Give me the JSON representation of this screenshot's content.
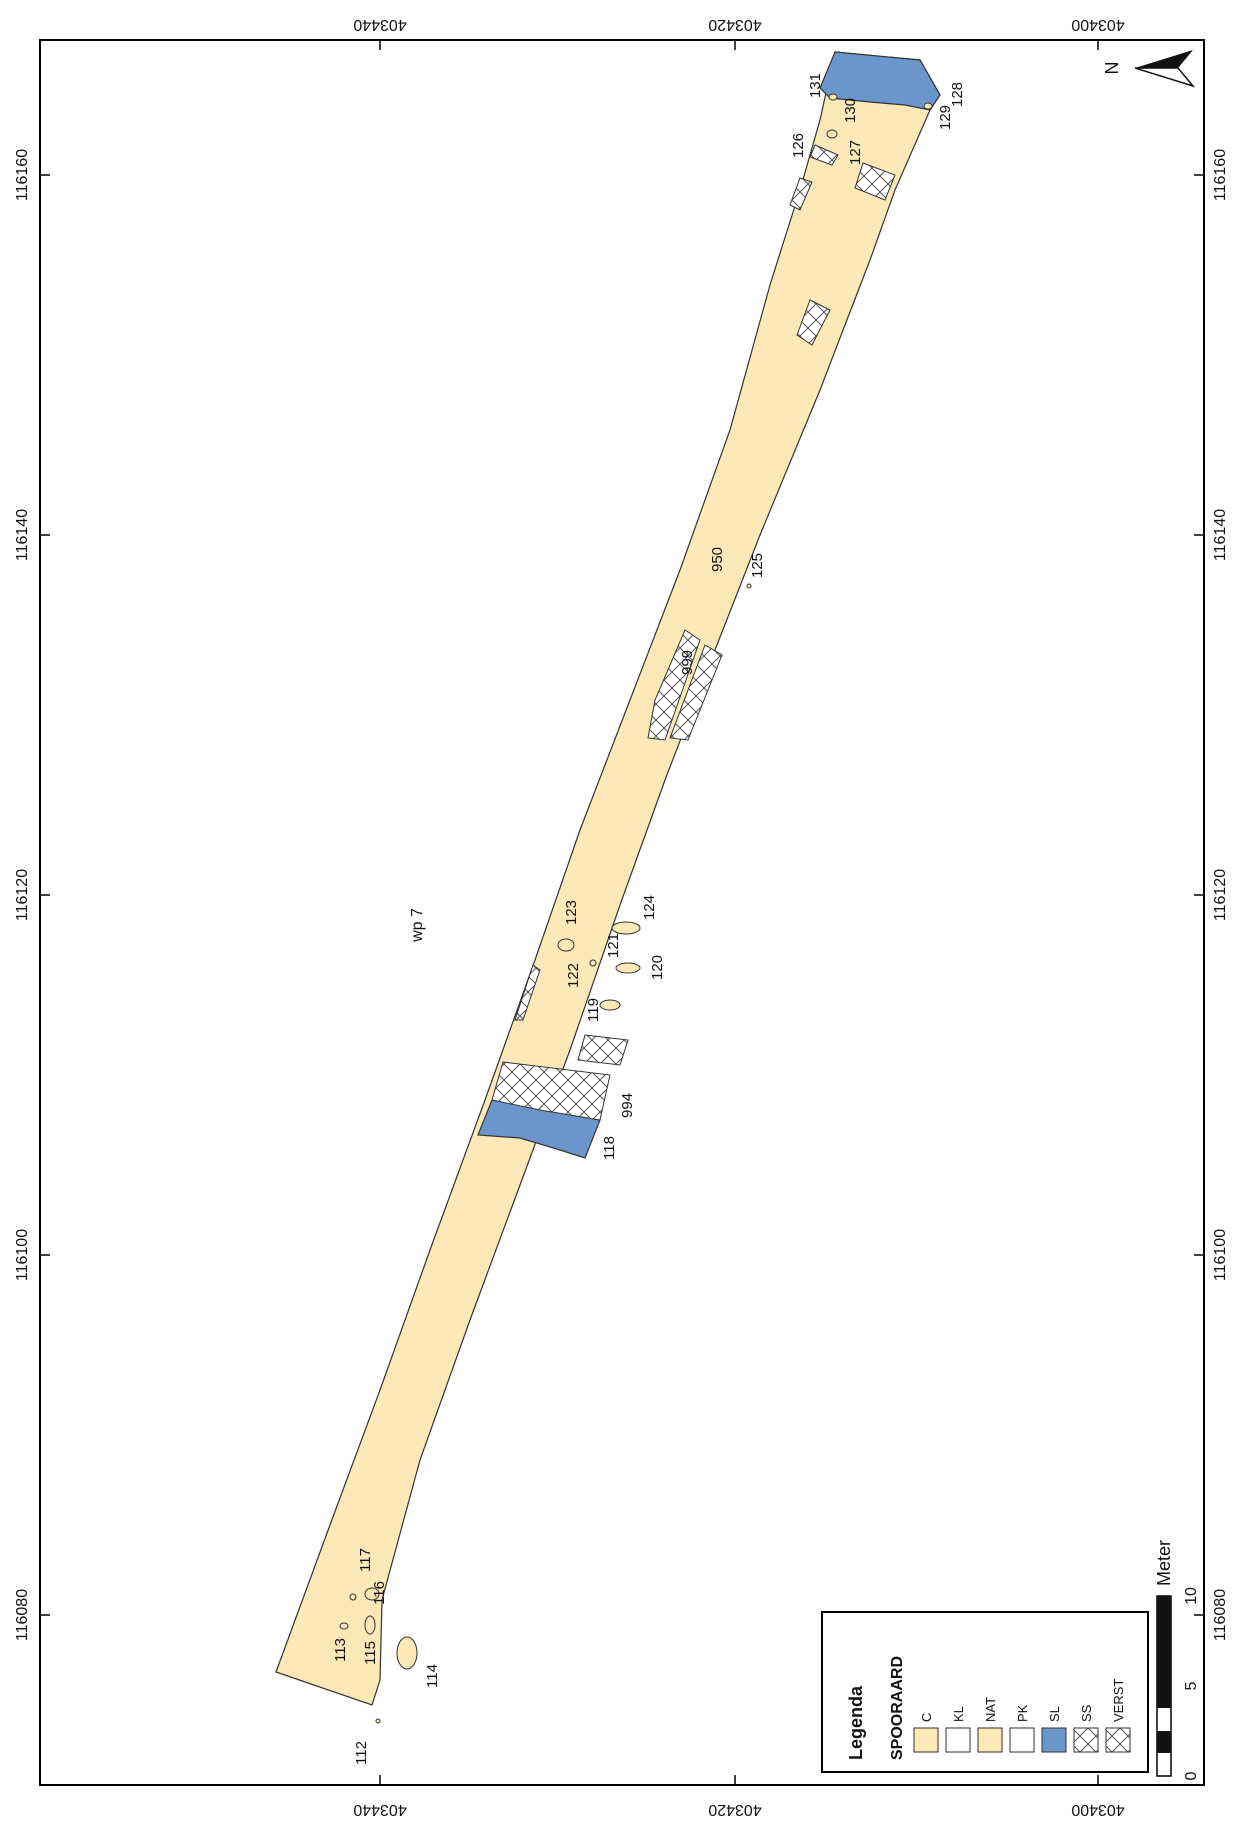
{
  "map": {
    "colors": {
      "nat": "#fde8b8",
      "sl": "#6b96cc",
      "white": "#ffffff",
      "outline": "#333333",
      "hatch": "#555555"
    },
    "top_axis_ticks": [
      "403440",
      "403420",
      "403400"
    ],
    "bottom_axis_ticks": [
      "403440",
      "403420",
      "403400"
    ],
    "left_axis_ticks": [
      "116160",
      "116140",
      "116120",
      "116100",
      "116080"
    ],
    "right_axis_ticks": [
      "116160",
      "116140",
      "116120",
      "116100",
      "116080"
    ],
    "area_label": "wp 7",
    "north_label": "N",
    "feature_labels": [
      {
        "id": "f131",
        "text": "131"
      },
      {
        "id": "f130",
        "text": "130"
      },
      {
        "id": "f129",
        "text": "129"
      },
      {
        "id": "f128",
        "text": "128"
      },
      {
        "id": "f127",
        "text": "127"
      },
      {
        "id": "f126",
        "text": "126"
      },
      {
        "id": "f950",
        "text": "950"
      },
      {
        "id": "f125",
        "text": "125"
      },
      {
        "id": "f999",
        "text": "999"
      },
      {
        "id": "f123",
        "text": "123"
      },
      {
        "id": "f124",
        "text": "124"
      },
      {
        "id": "f121",
        "text": "121"
      },
      {
        "id": "f122",
        "text": "122"
      },
      {
        "id": "f120",
        "text": "120"
      },
      {
        "id": "f119",
        "text": "119"
      },
      {
        "id": "f994",
        "text": "994"
      },
      {
        "id": "f118",
        "text": "118"
      },
      {
        "id": "f117",
        "text": "117"
      },
      {
        "id": "f116",
        "text": "116"
      },
      {
        "id": "f113",
        "text": "113"
      },
      {
        "id": "f115",
        "text": "115"
      },
      {
        "id": "f114",
        "text": "114"
      },
      {
        "id": "f112",
        "text": "112"
      }
    ]
  },
  "legend": {
    "title": "Legenda",
    "subtitle": "SPOORAARD",
    "items": [
      {
        "label": "C",
        "type": "fill",
        "color": "#fde8b8"
      },
      {
        "label": "KL",
        "type": "fill",
        "color": "#ffffff"
      },
      {
        "label": "NAT",
        "type": "fill",
        "color": "#fde8b8"
      },
      {
        "label": "PK",
        "type": "fill",
        "color": "#ffffff"
      },
      {
        "label": "SL",
        "type": "fill",
        "color": "#6b96cc"
      },
      {
        "label": "SS",
        "type": "hatch",
        "color": "#ffffff"
      },
      {
        "label": "VERST",
        "type": "hatch",
        "color": "#ffffff"
      }
    ]
  },
  "scalebar": {
    "labels": [
      "0",
      "5",
      "10"
    ],
    "unit": "Meter"
  }
}
